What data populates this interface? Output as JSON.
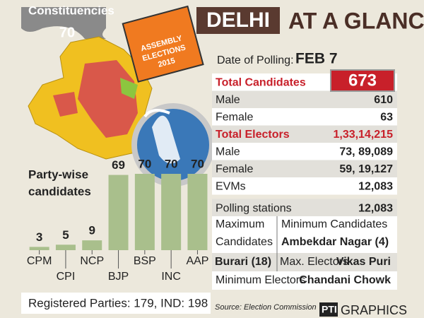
{
  "map": {
    "title": "Constituencies",
    "count": "70"
  },
  "box": {
    "lines": [
      "ASSEMBLY",
      "ELECTIONS",
      "2015"
    ]
  },
  "header": {
    "title": "DELHI",
    "subtitle": "AT A GLANCE"
  },
  "table": {
    "polling_label": "Date of Polling:",
    "polling_date": "FEB 7",
    "rows": [
      [
        "Total Candidates",
        "673"
      ],
      [
        "Male",
        "610"
      ],
      [
        "Female",
        "63"
      ],
      [
        "Total Electors",
        "1,33,14,215"
      ],
      [
        "Male",
        "73, 89,089"
      ],
      [
        "Female",
        "59, 19,127"
      ],
      [
        "EVMs",
        "12,083"
      ],
      [
        "Polling stations",
        "12,083"
      ]
    ]
  },
  "details": {
    "max_candidates": {
      "label": [
        "Maximum",
        "Candidates"
      ],
      "value": "Burari (18)"
    },
    "min_candidates": {
      "label": "Minimum  Candidates",
      "value": "Ambekdar Nagar (4)"
    },
    "max_electors": {
      "label": "Max. Electors",
      "value": "Vikas Puri"
    },
    "min_electors": {
      "label": "Minimum Electors",
      "value": "Chandani Chowk"
    }
  },
  "chart_data": {
    "type": "bar",
    "title": [
      "Party-wise",
      "candidates"
    ],
    "categories": [
      "CPM",
      "CPI",
      "NCP",
      "BJP",
      "BSP",
      "INC",
      "AAP"
    ],
    "values": [
      3,
      5,
      9,
      69,
      70,
      70,
      70
    ],
    "color": "#a9bf8c"
  },
  "footer": {
    "registered": "Registered Parties: 179, IND: 198",
    "source": "Source: Election Commission",
    "logo": "PTI",
    "credit": "GRAPHICS"
  }
}
